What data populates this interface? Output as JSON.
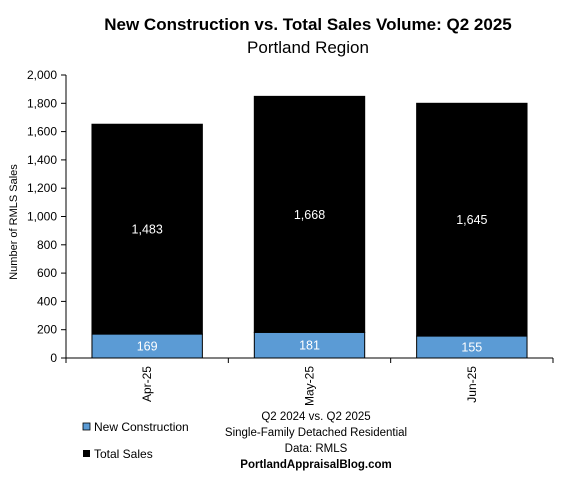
{
  "chart_data": {
    "type": "bar",
    "stacked": true,
    "title": "New Construction vs. Total Sales Volume: Q2 2025",
    "subtitle": "Portland Region",
    "ylabel": "Number of RMLS Sales",
    "xlabel": "",
    "categories": [
      "Apr-25",
      "May-25",
      "Jun-25"
    ],
    "ylim": [
      0,
      2000
    ],
    "yticks": [
      0,
      200,
      400,
      600,
      800,
      1000,
      1200,
      1400,
      1600,
      1800,
      2000
    ],
    "ytick_labels": [
      "0",
      "200",
      "400",
      "600",
      "800",
      "1,000",
      "1,200",
      "1,400",
      "1,600",
      "1,800",
      "2,000"
    ],
    "series": [
      {
        "name": "New Construction",
        "values": [
          169,
          181,
          155
        ],
        "labels": [
          "169",
          "181",
          "155"
        ],
        "color": "#5B9BD5",
        "label_color": "#ffffff"
      },
      {
        "name": "Total Sales",
        "values": [
          1483,
          1668,
          1645
        ],
        "labels": [
          "1,483",
          "1,668",
          "1,645"
        ],
        "color": "#000000",
        "label_color": "#ffffff"
      }
    ],
    "legend_position": "bottom-left",
    "grid": false
  },
  "notes": {
    "line1": "Q2 2024 vs. Q2 2025",
    "line2": "Single-Family Detached Residential",
    "line3": "Data: RMLS",
    "source": "PortlandAppraisalBlog.com"
  }
}
